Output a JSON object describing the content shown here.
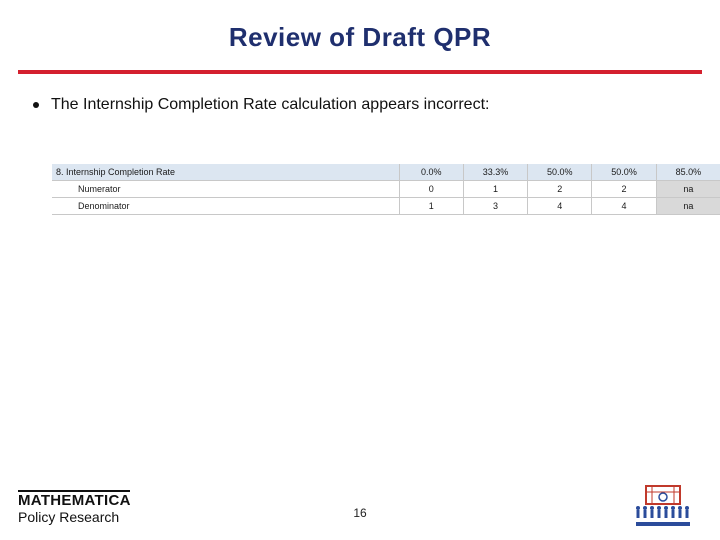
{
  "slide": {
    "title": "Review of Draft QPR",
    "bullet": "The Internship Completion Rate calculation appears incorrect:",
    "page_number": "16"
  },
  "table": {
    "header": {
      "label": "8. Internship Completion Rate",
      "values": [
        "0.0%",
        "33.3%",
        "50.0%",
        "50.0%",
        "85.0%"
      ]
    },
    "rows": [
      {
        "label": "Numerator",
        "values": [
          "0",
          "1",
          "2",
          "2",
          "na"
        ]
      },
      {
        "label": "Denominator",
        "values": [
          "1",
          "3",
          "4",
          "4",
          "na"
        ]
      }
    ]
  },
  "logos": {
    "left_line1": "MATHEMATICA",
    "left_line2": "Policy Research",
    "right": "YouthBuild logo"
  },
  "colors": {
    "title": "#1f2f6e",
    "rule": "#d4202e",
    "table_header_bg": "#dce6f1",
    "gray_cell": "#d9d9d9"
  }
}
